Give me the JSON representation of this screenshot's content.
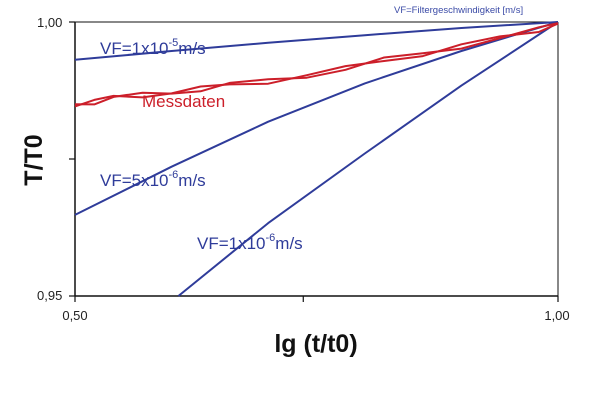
{
  "chart_data": {
    "type": "line",
    "title": "",
    "legend_note": "VF=Filtergeschwindigkeit [m/s]",
    "xlabel": "lg (t/t0)",
    "ylabel": "T/T0",
    "xlim": [
      0.5,
      1.0
    ],
    "ylim": [
      0.95,
      1.0
    ],
    "x_ticks": [
      0.5,
      1.0
    ],
    "x_tick_labels": [
      "0,50",
      "1,00"
    ],
    "x_minor_ticks": [
      0.7363
    ],
    "y_ticks": [
      0.95,
      1.0
    ],
    "y_tick_labels": [
      "0,95",
      "1,00"
    ],
    "y_minor_ticks": [
      0.975
    ],
    "grid": false,
    "colors": {
      "model": "#2f3c9a",
      "measured": "#cc1f2a",
      "axes": "#111111",
      "note": "#3a4aa6"
    },
    "series": [
      {
        "kind": "model",
        "x": [
          0.5,
          0.6,
          0.7,
          0.8,
          0.9,
          1.0
        ],
        "y": [
          0.9931,
          0.9947,
          0.9962,
          0.9976,
          0.9989,
          1.0
        ]
      },
      {
        "kind": "model",
        "x": [
          0.5,
          0.6,
          0.7,
          0.8,
          0.9,
          1.0
        ],
        "y": [
          0.9648,
          0.9736,
          0.9818,
          0.9888,
          0.9947,
          1.0
        ]
      },
      {
        "kind": "model",
        "x": [
          0.607,
          0.7,
          0.8,
          0.9,
          1.0
        ],
        "y": [
          0.95,
          0.9633,
          0.976,
          0.9884,
          1.0
        ]
      },
      {
        "name": "Messdaten",
        "kind": "measured",
        "x": [
          0.5,
          0.52,
          0.54,
          0.57,
          0.6,
          0.63,
          0.66,
          0.7,
          0.74,
          0.78,
          0.82,
          0.86,
          0.9,
          0.94,
          0.98,
          1.0
        ],
        "y": [
          0.985,
          0.9855,
          0.9862,
          0.9866,
          0.9872,
          0.9878,
          0.9885,
          0.9892,
          0.9903,
          0.9915,
          0.993,
          0.9942,
          0.9957,
          0.997,
          0.9985,
          1.0
        ]
      }
    ],
    "annotations": [
      {
        "id": "v1",
        "text_pre": "VF=1x10",
        "sup": "-5",
        "text_post": "m/s",
        "color": "#2f3c9a"
      },
      {
        "id": "v2",
        "text_pre": "VF=5x10",
        "sup": "-6",
        "text_post": "m/s",
        "color": "#2f3c9a"
      },
      {
        "id": "v3",
        "text_pre": "VF=1x10",
        "sup": "-6",
        "text_post": "m/s",
        "color": "#2f3c9a"
      },
      {
        "id": "mess",
        "text": "Messdaten",
        "color": "#cc1f2a"
      }
    ]
  }
}
